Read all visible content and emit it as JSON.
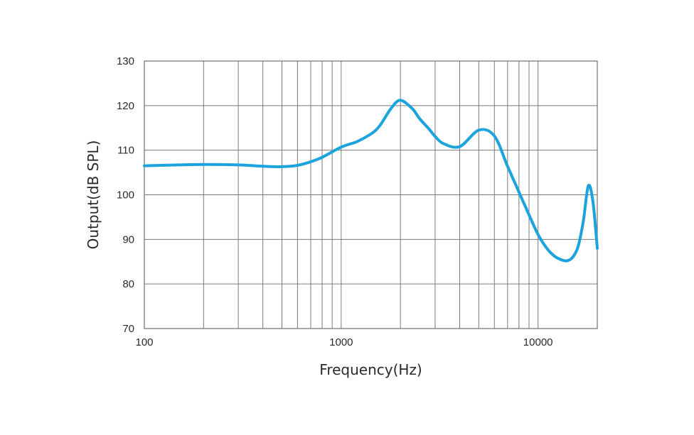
{
  "chart_data": {
    "type": "line",
    "title": "",
    "xlabel": "Frequency(Hz)",
    "ylabel": "Output(dB SPL)",
    "x_scale": "log",
    "xlim": [
      100,
      20000
    ],
    "ylim": [
      70,
      130
    ],
    "x_ticks": [
      100,
      1000,
      10000
    ],
    "x_tick_labels": [
      "100",
      "1000",
      "10000"
    ],
    "y_ticks": [
      70,
      80,
      90,
      100,
      110,
      120,
      130
    ],
    "y_tick_labels": [
      "70",
      "80",
      "90",
      "100",
      "110",
      "120",
      "130"
    ],
    "grid": true,
    "legend": "none",
    "series": [
      {
        "color": "#1aa3dc",
        "x": [
          100,
          150,
          200,
          300,
          400,
          500,
          600,
          700,
          800,
          1000,
          1200,
          1400,
          1500,
          1600,
          1800,
          2000,
          2300,
          2500,
          2800,
          3000,
          3300,
          4000,
          5000,
          6000,
          7000,
          8000,
          9000,
          10000,
          11000,
          12000,
          13000,
          14000,
          15000,
          16000,
          17000,
          18000,
          19000,
          20000
        ],
        "y": [
          106.5,
          106.7,
          106.8,
          106.7,
          106.4,
          106.3,
          106.6,
          107.4,
          108.4,
          110.7,
          111.9,
          113.5,
          114.5,
          116.0,
          119.5,
          121.2,
          119.3,
          117.1,
          114.7,
          113.1,
          111.5,
          110.8,
          114.5,
          113.2,
          106.4,
          100.6,
          95.5,
          91.1,
          88.2,
          86.4,
          85.5,
          85.2,
          86.0,
          88.5,
          94.2,
          102.0,
          98.5,
          88.0
        ]
      }
    ]
  }
}
